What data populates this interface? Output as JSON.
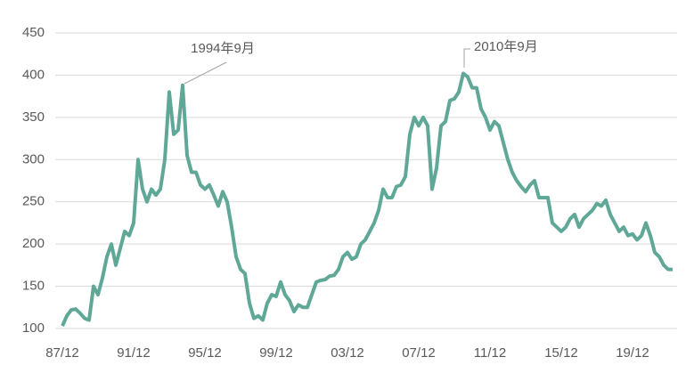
{
  "chart_data": {
    "type": "line",
    "categories": [
      "87/12",
      null,
      null,
      null,
      null,
      null,
      null,
      null,
      null,
      null,
      null,
      null,
      null,
      null,
      null,
      null,
      "91/12",
      null,
      null,
      null,
      null,
      null,
      null,
      null,
      null,
      null,
      null,
      null,
      null,
      null,
      null,
      null,
      "95/12",
      null,
      null,
      null,
      null,
      null,
      null,
      null,
      null,
      null,
      null,
      null,
      null,
      null,
      null,
      null,
      "99/12",
      null,
      null,
      null,
      null,
      null,
      null,
      null,
      null,
      null,
      null,
      null,
      null,
      null,
      null,
      null,
      "03/12",
      null,
      null,
      null,
      null,
      null,
      null,
      null,
      null,
      null,
      null,
      null,
      null,
      null,
      null,
      null,
      "07/12",
      null,
      null,
      null,
      null,
      null,
      null,
      null,
      null,
      null,
      null,
      null,
      null,
      null,
      null,
      null,
      "11/12",
      null,
      null,
      null,
      null,
      null,
      null,
      null,
      null,
      null,
      null,
      null,
      null,
      null,
      null,
      null,
      "15/12",
      null,
      null,
      null,
      null,
      null,
      null,
      null,
      null,
      null,
      null,
      null,
      null,
      null,
      null,
      null,
      "19/12",
      null,
      null,
      null,
      null,
      null,
      null,
      null,
      null,
      null
    ],
    "color": "#5fa898",
    "values": [
      103,
      115,
      122,
      123,
      118,
      112,
      110,
      150,
      140,
      160,
      185,
      200,
      175,
      195,
      215,
      210,
      225,
      300,
      265,
      250,
      265,
      258,
      265,
      300,
      380,
      330,
      335,
      388,
      305,
      285,
      285,
      270,
      265,
      270,
      258,
      245,
      262,
      250,
      220,
      185,
      170,
      165,
      130,
      112,
      115,
      110,
      130,
      140,
      138,
      155,
      140,
      133,
      120,
      128,
      125,
      125,
      140,
      155,
      157,
      158,
      162,
      163,
      170,
      185,
      190,
      182,
      185,
      200,
      205,
      215,
      225,
      240,
      265,
      255,
      255,
      268,
      270,
      280,
      330,
      350,
      340,
      350,
      340,
      265,
      290,
      340,
      345,
      370,
      372,
      380,
      402,
      398,
      385,
      385,
      360,
      350,
      335,
      345,
      340,
      320,
      300,
      285,
      275,
      268,
      262,
      270,
      275,
      255,
      255,
      255,
      225,
      220,
      215,
      220,
      230,
      235,
      220,
      230,
      235,
      240,
      248,
      245,
      252,
      235,
      225,
      215,
      220,
      210,
      212,
      205,
      210,
      225,
      210,
      190,
      185,
      175,
      170,
      170
    ],
    "ylim": [
      100,
      450
    ],
    "yticks": [
      100,
      150,
      200,
      250,
      300,
      350,
      400,
      450
    ],
    "grid": true,
    "annotations": [
      "1994年9月",
      "2010年9月"
    ]
  }
}
